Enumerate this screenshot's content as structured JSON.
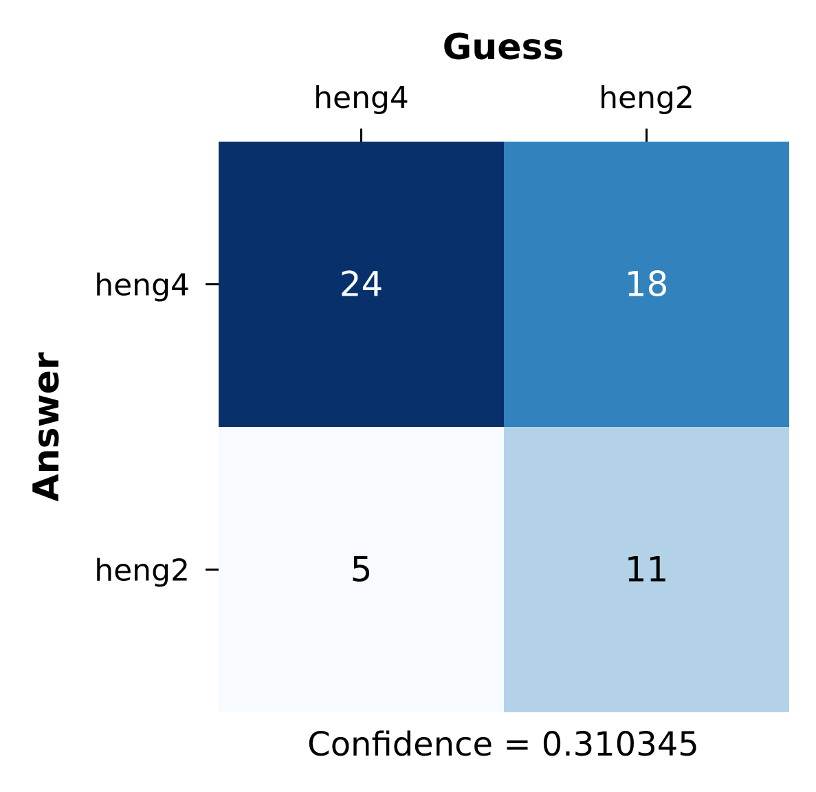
{
  "chart_data": {
    "type": "heatmap",
    "title": "",
    "xlabel": "Guess",
    "ylabel": "Answer",
    "x_categories": [
      "heng4",
      "heng2"
    ],
    "y_categories": [
      "heng4",
      "heng2"
    ],
    "values": [
      [
        24,
        18
      ],
      [
        5,
        11
      ]
    ],
    "caption": "Confidence = 0.310345",
    "colormap": "Blues",
    "cell_colors": [
      [
        "#08306b",
        "#3282bd"
      ],
      [
        "#f7fbff",
        "#b3d2e7"
      ]
    ],
    "annotation_colors": [
      [
        "#ffffff",
        "#ffffff"
      ],
      [
        "#000000",
        "#000000"
      ]
    ],
    "x_axis_position": "top",
    "grid": false,
    "colorbar": false
  }
}
